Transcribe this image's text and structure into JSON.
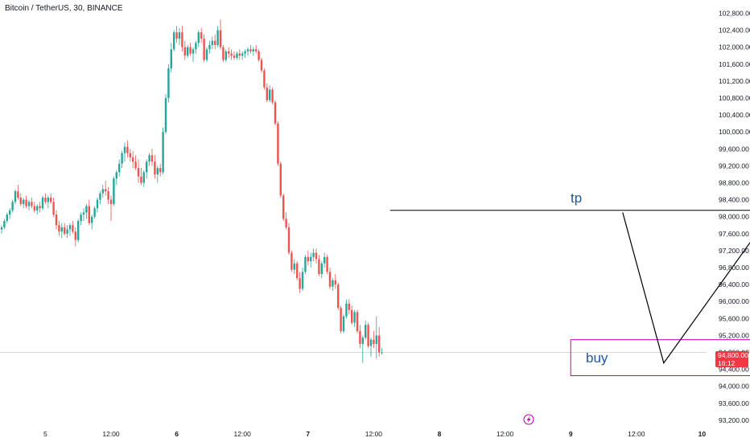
{
  "symbol_header": "Bitcoin / TetherUS, 30, BINANCE",
  "last_price_badge": {
    "price": "94,800.00",
    "countdown": "16:12",
    "color": "#f23645"
  },
  "colors": {
    "up": "#26a69a",
    "down": "#ef5350",
    "annotation_line": "#000000",
    "buy_box": "#c000c0",
    "label_text": "#1e56a0",
    "axis_text": "#131722"
  },
  "chart_data": {
    "type": "candlestick",
    "interval_minutes": 30,
    "y_axis": {
      "range": [
        93100,
        103050
      ],
      "ticks": [
        "102,800.00",
        "102,400.00",
        "102,000.00",
        "101,600.00",
        "101,200.00",
        "100,800.00",
        "100,400.00",
        "100,000.00",
        "99,600.00",
        "99,200.00",
        "98,800.00",
        "98,400.00",
        "98,000.00",
        "97,600.00",
        "97,200.00",
        "96,800.00",
        "96,400.00",
        "96,000.00",
        "95,600.00",
        "95,200.00",
        "94,800.00",
        "94,400.00",
        "94,000.00",
        "93,600.00",
        "93,200.00"
      ],
      "tick_values": [
        102800,
        102400,
        102000,
        101600,
        101200,
        100800,
        100400,
        100000,
        99600,
        99200,
        98800,
        98400,
        98000,
        97600,
        97200,
        96800,
        96400,
        96000,
        95600,
        95200,
        94800,
        94400,
        94000,
        93600,
        93200
      ]
    },
    "x_axis": {
      "ticks": [
        "5",
        "12:00",
        "6",
        "12:00",
        "7",
        "12:00",
        "8",
        "12:00",
        "9",
        "12:00",
        "10"
      ],
      "bold": [
        false,
        false,
        true,
        false,
        true,
        false,
        true,
        false,
        true,
        false,
        true
      ],
      "bar_index": [
        16,
        40,
        64,
        88,
        112,
        136,
        160,
        184,
        208,
        232,
        256
      ]
    },
    "last_price": 94800,
    "series": [
      {
        "name": "",
        "candles_ohlc": [
          [
            97700,
            97800,
            97600,
            97750
          ],
          [
            97750,
            97950,
            97700,
            97900
          ],
          [
            97900,
            98100,
            97850,
            98050
          ],
          [
            98050,
            98200,
            97950,
            98150
          ],
          [
            98150,
            98400,
            98100,
            98350
          ],
          [
            98350,
            98650,
            98300,
            98600
          ],
          [
            98600,
            98750,
            98400,
            98450
          ],
          [
            98450,
            98550,
            98250,
            98300
          ],
          [
            98300,
            98450,
            98200,
            98400
          ],
          [
            98400,
            98500,
            98200,
            98250
          ],
          [
            98250,
            98400,
            98150,
            98350
          ],
          [
            98350,
            98450,
            98200,
            98250
          ],
          [
            98250,
            98350,
            98100,
            98150
          ],
          [
            98150,
            98300,
            98050,
            98250
          ],
          [
            98250,
            98350,
            98100,
            98200
          ],
          [
            98200,
            98500,
            98150,
            98450
          ],
          [
            98450,
            98550,
            98300,
            98350
          ],
          [
            98350,
            98500,
            98200,
            98450
          ],
          [
            98450,
            98550,
            98300,
            98350
          ],
          [
            98350,
            98450,
            98000,
            98050
          ],
          [
            98050,
            98150,
            97700,
            97800
          ],
          [
            97800,
            97900,
            97550,
            97650
          ],
          [
            97650,
            97850,
            97500,
            97750
          ],
          [
            97750,
            97850,
            97550,
            97600
          ],
          [
            97600,
            97800,
            97500,
            97700
          ],
          [
            97700,
            97850,
            97550,
            97800
          ],
          [
            97800,
            97900,
            97600,
            97650
          ],
          [
            97650,
            97750,
            97300,
            97450
          ],
          [
            97450,
            97950,
            97400,
            97900
          ],
          [
            97900,
            98100,
            97800,
            98050
          ],
          [
            98050,
            98200,
            97900,
            98100
          ],
          [
            98100,
            98300,
            97950,
            98250
          ],
          [
            98250,
            98400,
            97800,
            97850
          ],
          [
            97850,
            98050,
            97700,
            98000
          ],
          [
            98000,
            98250,
            97950,
            98200
          ],
          [
            98200,
            98450,
            98100,
            98400
          ],
          [
            98400,
            98600,
            98300,
            98550
          ],
          [
            98550,
            98750,
            98450,
            98650
          ],
          [
            98650,
            98850,
            98500,
            98600
          ],
          [
            98600,
            98700,
            98300,
            98400
          ],
          [
            98400,
            98500,
            97900,
            98300
          ],
          [
            98300,
            98950,
            98250,
            98900
          ],
          [
            98900,
            99100,
            98750,
            99050
          ],
          [
            99050,
            99350,
            98950,
            99250
          ],
          [
            99250,
            99550,
            99150,
            99500
          ],
          [
            99500,
            99750,
            99300,
            99650
          ],
          [
            99650,
            99800,
            99400,
            99500
          ],
          [
            99500,
            99600,
            99300,
            99400
          ],
          [
            99400,
            99550,
            99150,
            99300
          ],
          [
            99300,
            99450,
            99100,
            99150
          ],
          [
            99150,
            99350,
            98800,
            98950
          ],
          [
            98950,
            99150,
            98750,
            98800
          ],
          [
            98800,
            99100,
            98700,
            99050
          ],
          [
            99050,
            99350,
            98900,
            99300
          ],
          [
            99300,
            99500,
            99200,
            99450
          ],
          [
            99450,
            99600,
            99200,
            99300
          ],
          [
            99300,
            99450,
            98900,
            99000
          ],
          [
            99000,
            99200,
            98800,
            99150
          ],
          [
            99150,
            99250,
            98950,
            99050
          ],
          [
            99050,
            100100,
            99000,
            100000
          ],
          [
            100000,
            100900,
            99950,
            100800
          ],
          [
            100800,
            101600,
            100700,
            101500
          ],
          [
            101500,
            102100,
            101400,
            101950
          ],
          [
            101950,
            102400,
            101900,
            102350
          ],
          [
            102350,
            102500,
            102100,
            102200
          ],
          [
            102200,
            102450,
            102050,
            102350
          ],
          [
            102350,
            102500,
            101900,
            102000
          ],
          [
            102000,
            102150,
            101700,
            101800
          ],
          [
            101800,
            102050,
            101750,
            102000
          ],
          [
            102000,
            102100,
            101800,
            101850
          ],
          [
            101850,
            102000,
            101650,
            101950
          ],
          [
            101950,
            102150,
            101850,
            102100
          ],
          [
            102100,
            102400,
            102000,
            102350
          ],
          [
            102350,
            102450,
            102100,
            102200
          ],
          [
            102200,
            102300,
            101650,
            101700
          ],
          [
            101700,
            102000,
            101650,
            101950
          ],
          [
            101950,
            102150,
            101850,
            102050
          ],
          [
            102050,
            102250,
            101950,
            102150
          ],
          [
            102150,
            102300,
            101950,
            102050
          ],
          [
            102050,
            102500,
            102000,
            102400
          ],
          [
            102400,
            102650,
            101950,
            102000
          ],
          [
            102000,
            102050,
            101650,
            101700
          ],
          [
            101700,
            101950,
            101650,
            101900
          ],
          [
            101900,
            102000,
            101750,
            101850
          ],
          [
            101850,
            101950,
            101700,
            101800
          ],
          [
            101800,
            101900,
            101700,
            101750
          ],
          [
            101750,
            101900,
            101700,
            101850
          ],
          [
            101850,
            101950,
            101700,
            101800
          ],
          [
            101800,
            101900,
            101700,
            101850
          ],
          [
            101850,
            101950,
            101750,
            101900
          ],
          [
            101900,
            102000,
            101800,
            101950
          ],
          [
            101950,
            102050,
            101850,
            101900
          ],
          [
            101900,
            102000,
            101800,
            101950
          ],
          [
            101950,
            102050,
            101850,
            101900
          ],
          [
            101900,
            101950,
            101650,
            101700
          ],
          [
            101700,
            101750,
            101400,
            101450
          ],
          [
            101450,
            101500,
            101000,
            101050
          ],
          [
            101050,
            101150,
            100700,
            100750
          ],
          [
            100750,
            101100,
            100700,
            101000
          ],
          [
            101000,
            101050,
            100650,
            100700
          ],
          [
            100700,
            100750,
            100150,
            100200
          ],
          [
            100200,
            100250,
            99200,
            99250
          ],
          [
            99250,
            99300,
            98450,
            98500
          ],
          [
            98500,
            98550,
            97900,
            97950
          ],
          [
            97950,
            98100,
            97700,
            97750
          ],
          [
            97750,
            97850,
            97100,
            97150
          ],
          [
            97150,
            97200,
            96700,
            96750
          ],
          [
            96750,
            97000,
            96650,
            96900
          ],
          [
            96900,
            96950,
            96500,
            96550
          ],
          [
            96550,
            96700,
            96200,
            96300
          ],
          [
            96300,
            96800,
            96250,
            96700
          ],
          [
            96700,
            97100,
            96650,
            97050
          ],
          [
            97050,
            97200,
            96850,
            96950
          ],
          [
            96950,
            97150,
            96800,
            97050
          ],
          [
            97050,
            97250,
            96950,
            97150
          ],
          [
            97150,
            97250,
            96900,
            97000
          ],
          [
            97000,
            97100,
            96600,
            96650
          ],
          [
            96650,
            96950,
            96550,
            96900
          ],
          [
            96900,
            97150,
            96800,
            97050
          ],
          [
            97050,
            97100,
            96650,
            96700
          ],
          [
            96700,
            96800,
            96300,
            96350
          ],
          [
            96350,
            96550,
            96250,
            96500
          ],
          [
            96500,
            96650,
            96300,
            96400
          ],
          [
            96400,
            96450,
            95800,
            95850
          ],
          [
            95850,
            95900,
            95250,
            95300
          ],
          [
            95300,
            95700,
            95250,
            95650
          ],
          [
            95650,
            96050,
            95600,
            95950
          ],
          [
            95950,
            96050,
            95700,
            95800
          ],
          [
            95800,
            95900,
            95450,
            95500
          ],
          [
            95500,
            95800,
            95400,
            95750
          ],
          [
            95750,
            95800,
            95250,
            95300
          ],
          [
            95300,
            95450,
            94900,
            95000
          ],
          [
            95000,
            95200,
            94550,
            95150
          ],
          [
            95150,
            95550,
            95100,
            95450
          ],
          [
            95450,
            95500,
            94900,
            94950
          ],
          [
            94950,
            95150,
            94700,
            95100
          ],
          [
            95100,
            95300,
            94900,
            95000
          ],
          [
            95000,
            95650,
            94650,
            95200
          ],
          [
            95200,
            95400,
            94700,
            94800
          ],
          [
            94800,
            94900,
            94750,
            94800
          ]
        ]
      }
    ],
    "annotations": {
      "label_tp": "tp",
      "label_buy": "buy",
      "tp_level": 98150,
      "tp_line_bar_range": [
        142,
        314
      ],
      "buy_zone_price_range": [
        94250,
        95100
      ],
      "buy_zone_bar_range": [
        208,
        330
      ],
      "zigzag_points": [
        [
          227,
          98100
        ],
        [
          242,
          94550
        ],
        [
          282,
          98150
        ]
      ]
    }
  }
}
